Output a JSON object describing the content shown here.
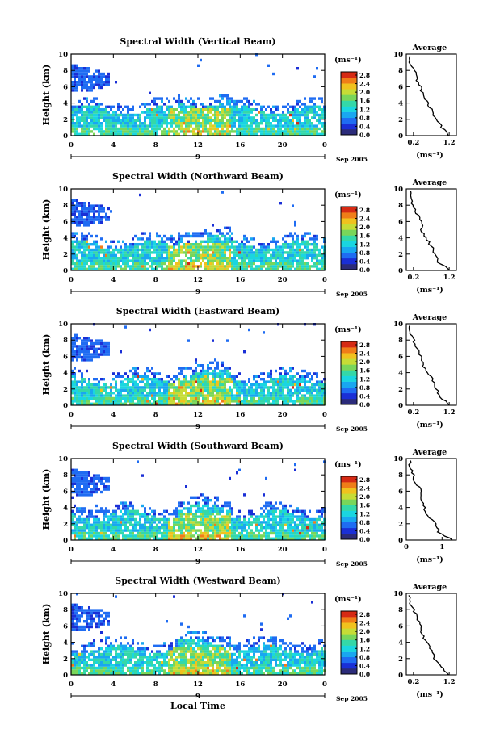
{
  "colors": {
    "scale": [
      "#2b2b7a",
      "#1a2fd6",
      "#1f6cf2",
      "#19a7f0",
      "#1ad6e0",
      "#34d8a8",
      "#79d65a",
      "#c6dc36",
      "#f0c21e",
      "#f07d18",
      "#d62a14"
    ]
  },
  "common": {
    "x_ticks": [
      "0",
      "4",
      "8",
      "12",
      "16",
      "20",
      "0"
    ],
    "y_ticks": [
      "0",
      "2",
      "4",
      "6",
      "8",
      "10"
    ],
    "ylabel": "Height (km)",
    "date_mark": "9",
    "date_label": "Sep 2005",
    "cbar_unit": "(ms⁻¹)",
    "cbar_ticks": [
      "0.0",
      "0.4",
      "0.8",
      "1.2",
      "1.6",
      "2.0",
      "2.4",
      "2.8"
    ],
    "avg_title": "Average",
    "avg_unit": "(ms⁻¹)",
    "avg_y_ticks": [
      "0",
      "2",
      "4",
      "6",
      "8",
      "10"
    ],
    "xlabel": "Local Time"
  },
  "chart_data": [
    {
      "type": "heatmap",
      "title": "Spectral Width (Vertical Beam)",
      "xlim": [
        0,
        24
      ],
      "ylim": [
        0,
        10
      ],
      "clim": [
        0,
        2.8
      ],
      "avg": {
        "xticks": [
          "0.2",
          "1.2"
        ],
        "xlim": [
          0,
          1.4
        ],
        "profile": [
          1.2,
          1.0,
          0.85,
          0.72,
          0.6,
          0.45,
          0.42,
          0.28,
          0.22,
          0.1
        ]
      }
    },
    {
      "type": "heatmap",
      "title": "Spectral Width (Northward Beam)",
      "xlim": [
        0,
        24
      ],
      "ylim": [
        0,
        10
      ],
      "clim": [
        0,
        2.8
      ],
      "avg": {
        "xticks": [
          "0.2",
          "1.2"
        ],
        "xlim": [
          0,
          1.4
        ],
        "profile": [
          1.25,
          0.9,
          0.8,
          0.7,
          0.55,
          0.4,
          0.45,
          0.3,
          0.2,
          0.1
        ]
      }
    },
    {
      "type": "heatmap",
      "title": "Spectral Width (Eastward Beam)",
      "xlim": [
        0,
        24
      ],
      "ylim": [
        0,
        10
      ],
      "clim": [
        0,
        2.8
      ],
      "avg": {
        "xticks": [
          "0.2",
          "1.2"
        ],
        "xlim": [
          0,
          1.4
        ],
        "profile": [
          1.2,
          0.95,
          0.85,
          0.75,
          0.6,
          0.45,
          0.4,
          0.3,
          0.2,
          0.1
        ]
      }
    },
    {
      "type": "heatmap",
      "title": "Spectral Width (Southward Beam)",
      "xlim": [
        0,
        24
      ],
      "ylim": [
        0,
        10
      ],
      "clim": [
        0,
        2.8
      ],
      "avg": {
        "xticks": [
          "0",
          "1"
        ],
        "xlim": [
          0,
          1.4
        ],
        "profile": [
          1.3,
          0.9,
          0.85,
          0.6,
          0.5,
          0.4,
          0.45,
          0.25,
          0.2,
          0.1
        ]
      }
    },
    {
      "type": "heatmap",
      "title": "Spectral Width (Westward Beam)",
      "xlim": [
        0,
        24
      ],
      "ylim": [
        0,
        10
      ],
      "clim": [
        0,
        2.8
      ],
      "avg": {
        "xticks": [
          "0.2",
          "1.2"
        ],
        "xlim": [
          0,
          1.4
        ],
        "profile": [
          1.2,
          0.95,
          0.8,
          0.7,
          0.55,
          0.45,
          0.4,
          0.3,
          0.2,
          0.1
        ]
      }
    }
  ]
}
